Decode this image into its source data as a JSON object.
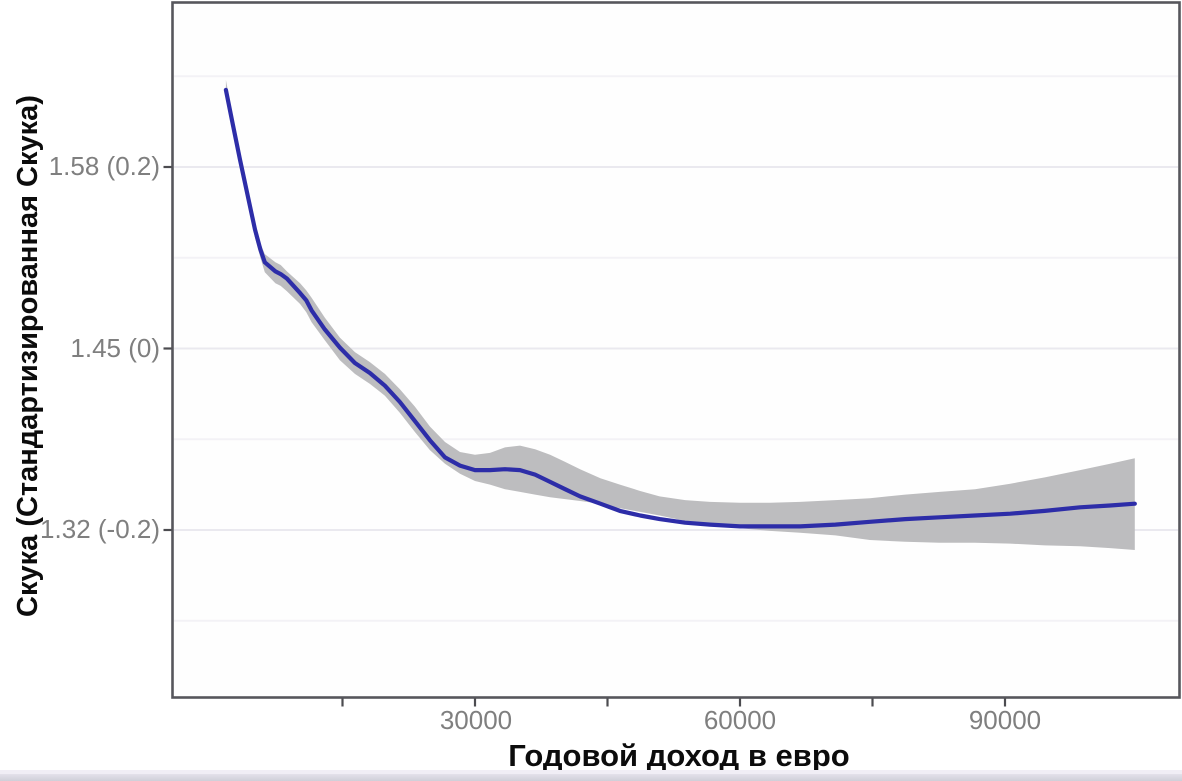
{
  "chart_data": {
    "type": "line",
    "title": "",
    "xlabel": "Годовой доход в евро",
    "ylabel": "Скука (Стандартизированная Скука)",
    "xlim": [
      -4200,
      109700
    ],
    "ylim": [
      -0.385,
      0.381
    ],
    "grid": "horizontal-only",
    "legend": "none",
    "x_tick_values": [
      15000,
      30000,
      45000,
      60000,
      75000,
      90000
    ],
    "x_tick_labels": [
      "",
      "30000",
      "",
      "60000",
      "",
      "90000"
    ],
    "y_tick_values": [
      0.2,
      0.0,
      -0.2
    ],
    "y_tick_labels": [
      "1.58 (0.2)",
      "1.45 (0)",
      "1.32 (-0.2)"
    ],
    "y_major_grid": [
      0.2,
      0.0,
      -0.2
    ],
    "y_minor_grid": [
      0.3,
      0.1,
      -0.1,
      -0.3
    ],
    "colors": {
      "line": "#2d2da8",
      "band": "#bdbdbf",
      "panel_border": "#56565c",
      "tick": "#4c4c50",
      "tick_label": "#7f7f7f",
      "grid_major": "#eae9ef",
      "grid_minor": "#f3f2f6"
    },
    "series": [
      {
        "name": "smoothed-boredom-vs-income",
        "line_color": "#2d2da8",
        "band_color": "#bdbdbf",
        "x": [
          1800,
          2600,
          3400,
          5100,
          5700,
          6200,
          7400,
          8000,
          8700,
          10200,
          10900,
          11500,
          13000,
          14700,
          16400,
          18100,
          19800,
          21500,
          23200,
          24900,
          26600,
          28300,
          30000,
          31700,
          33400,
          35100,
          36800,
          38500,
          40200,
          41900,
          44200,
          46400,
          48700,
          50900,
          53800,
          56600,
          60000,
          63400,
          66800,
          70800,
          74700,
          78700,
          82600,
          86600,
          90600,
          94500,
          98500,
          101900,
          104700
        ],
        "y": [
          0.285,
          0.246,
          0.208,
          0.131,
          0.109,
          0.095,
          0.085,
          0.082,
          0.077,
          0.061,
          0.053,
          0.042,
          0.021,
          0.001,
          -0.016,
          -0.027,
          -0.041,
          -0.059,
          -0.08,
          -0.101,
          -0.12,
          -0.129,
          -0.134,
          -0.134,
          -0.133,
          -0.134,
          -0.139,
          -0.147,
          -0.155,
          -0.163,
          -0.171,
          -0.179,
          -0.184,
          -0.188,
          -0.192,
          -0.194,
          -0.196,
          -0.196,
          -0.196,
          -0.194,
          -0.191,
          -0.188,
          -0.186,
          -0.184,
          -0.182,
          -0.179,
          -0.175,
          -0.173,
          -0.171
        ],
        "ci_upper": [
          0.296,
          0.254,
          0.213,
          0.137,
          0.116,
          0.104,
          0.095,
          0.092,
          0.085,
          0.072,
          0.064,
          0.056,
          0.034,
          0.012,
          -0.004,
          -0.015,
          -0.028,
          -0.045,
          -0.064,
          -0.086,
          -0.103,
          -0.114,
          -0.117,
          -0.115,
          -0.109,
          -0.107,
          -0.111,
          -0.117,
          -0.125,
          -0.133,
          -0.143,
          -0.15,
          -0.157,
          -0.163,
          -0.167,
          -0.169,
          -0.17,
          -0.17,
          -0.169,
          -0.167,
          -0.165,
          -0.161,
          -0.158,
          -0.155,
          -0.149,
          -0.142,
          -0.134,
          -0.127,
          -0.121
        ],
        "ci_lower": [
          0.278,
          0.239,
          0.199,
          0.122,
          0.1,
          0.084,
          0.072,
          0.069,
          0.063,
          0.049,
          0.04,
          0.029,
          0.009,
          -0.013,
          -0.028,
          -0.039,
          -0.052,
          -0.071,
          -0.092,
          -0.112,
          -0.127,
          -0.138,
          -0.146,
          -0.15,
          -0.155,
          -0.158,
          -0.161,
          -0.164,
          -0.166,
          -0.168,
          -0.171,
          -0.176,
          -0.18,
          -0.184,
          -0.19,
          -0.194,
          -0.198,
          -0.201,
          -0.203,
          -0.206,
          -0.211,
          -0.213,
          -0.214,
          -0.214,
          -0.215,
          -0.217,
          -0.218,
          -0.22,
          -0.222
        ]
      }
    ]
  }
}
